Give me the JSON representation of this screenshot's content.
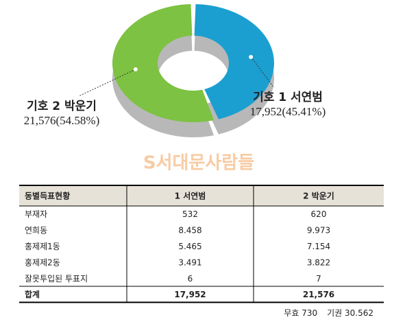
{
  "chart_data": {
    "type": "donut",
    "series": [
      {
        "name": "기호 1 서연범",
        "color": "#1b9fd0",
        "values": [
          17952
        ],
        "value_labels": [
          "17,952(45.41%)"
        ]
      },
      {
        "name": "기호 2 박운기",
        "color": "#7dc242",
        "values": [
          21576
        ],
        "value_labels": [
          "21,576(54.58%)"
        ]
      }
    ]
  },
  "watermark": "S서대문사람들",
  "table": {
    "header": [
      "동별득표현황",
      "1 서연범",
      "2 박운기"
    ],
    "rows": [
      [
        "부재자",
        "532",
        "620"
      ],
      [
        "연희동",
        "8.458",
        "9.973"
      ],
      [
        "홍제제1동",
        "5.465",
        "7.154"
      ],
      [
        "홍제제2동",
        "3.491",
        "3.822"
      ],
      [
        "잘못투입된 투표지",
        "6",
        "7"
      ],
      [
        "합계",
        "17,952",
        "21,576"
      ]
    ],
    "footnote": [
      "무효 730",
      "기권 30.562"
    ]
  }
}
